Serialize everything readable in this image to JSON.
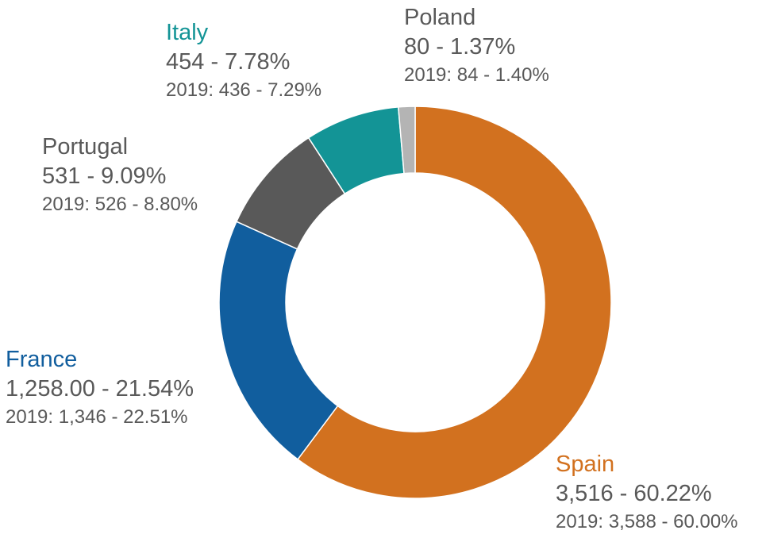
{
  "chart_data": {
    "type": "pie",
    "donut": true,
    "legend": "none",
    "slices": [
      {
        "name": "Spain",
        "value": 3516,
        "value_label": "3,516 - 60.22%",
        "prev_label": "2019: 3,588 - 60.00%",
        "color": "#D2711F"
      },
      {
        "name": "France",
        "value": 1258.0,
        "value_label": "1,258.00 - 21.54%",
        "prev_label": "2019: 1,346 - 22.51%",
        "color": "#115E9E"
      },
      {
        "name": "Portugal",
        "value": 531,
        "value_label": "531 - 9.09%",
        "prev_label": "2019: 526 - 8.80%",
        "color": "#595959"
      },
      {
        "name": "Italy",
        "value": 454,
        "value_label": "454 - 7.78%",
        "prev_label": "2019: 436 - 7.29%",
        "color": "#139496"
      },
      {
        "name": "Poland",
        "value": 80,
        "value_label": "80 - 1.37%",
        "prev_label": "2019: 84 - 1.40%",
        "color": "#B4B4B4"
      }
    ]
  }
}
